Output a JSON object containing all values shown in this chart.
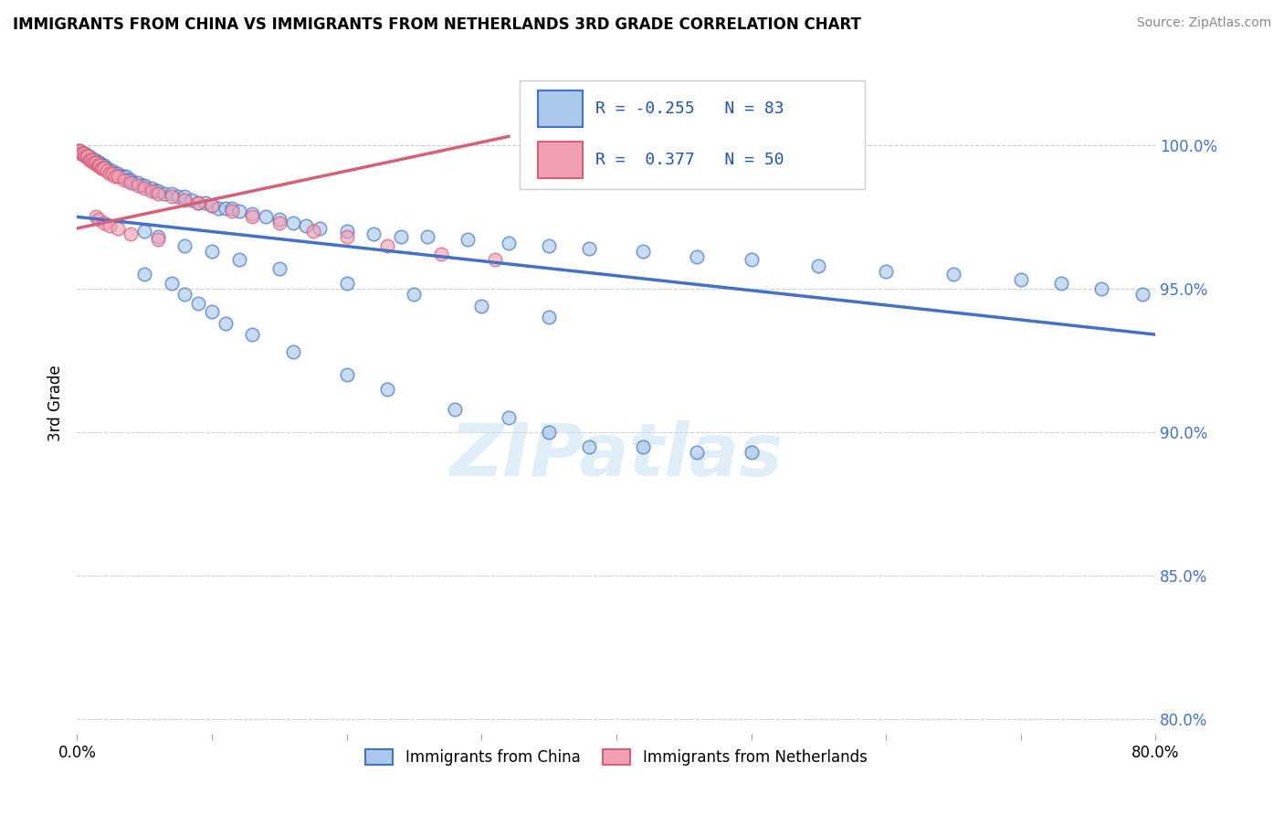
{
  "title": "IMMIGRANTS FROM CHINA VS IMMIGRANTS FROM NETHERLANDS 3RD GRADE CORRELATION CHART",
  "source": "Source: ZipAtlas.com",
  "ylabel": "3rd Grade",
  "x_min": 0.0,
  "x_max": 0.8,
  "y_min": 0.795,
  "y_max": 1.025,
  "y_ticks": [
    0.8,
    0.85,
    0.9,
    0.95,
    1.0
  ],
  "y_tick_labels": [
    "80.0%",
    "85.0%",
    "90.0%",
    "95.0%",
    "100.0%"
  ],
  "legend_labels_bottom": [
    "Immigrants from China",
    "Immigrants from Netherlands"
  ],
  "legend_R_china": "R = -0.255",
  "legend_N_china": "N = 83",
  "legend_R_neth": "R =  0.377",
  "legend_N_neth": "N = 50",
  "color_china": "#aac8ea",
  "color_neth": "#f2a0b4",
  "color_china_line": "#4472c4",
  "color_neth_line": "#d4607a",
  "watermark": "ZIPatlas",
  "china_trend_x0": 0.0,
  "china_trend_y0": 0.975,
  "china_trend_x1": 0.8,
  "china_trend_y1": 0.934,
  "neth_trend_x0": 0.0,
  "neth_trend_y0": 0.971,
  "neth_trend_x1": 0.32,
  "neth_trend_y1": 1.003,
  "china_x": [
    0.001,
    0.002,
    0.003,
    0.004,
    0.005,
    0.006,
    0.007,
    0.008,
    0.009,
    0.01,
    0.011,
    0.012,
    0.013,
    0.014,
    0.015,
    0.016,
    0.017,
    0.018,
    0.019,
    0.02,
    0.022,
    0.024,
    0.026,
    0.028,
    0.03,
    0.032,
    0.034,
    0.036,
    0.038,
    0.04,
    0.042,
    0.045,
    0.048,
    0.05,
    0.055,
    0.058,
    0.06,
    0.065,
    0.07,
    0.075,
    0.08,
    0.085,
    0.09,
    0.095,
    0.1,
    0.105,
    0.11,
    0.115,
    0.12,
    0.13,
    0.14,
    0.15,
    0.16,
    0.17,
    0.18,
    0.2,
    0.22,
    0.24,
    0.26,
    0.29,
    0.32,
    0.35,
    0.38,
    0.42,
    0.46,
    0.5,
    0.55,
    0.6,
    0.65,
    0.7,
    0.73,
    0.76,
    0.79,
    0.05,
    0.06,
    0.08,
    0.1,
    0.12,
    0.15,
    0.2,
    0.25,
    0.3,
    0.35
  ],
  "china_y": [
    0.998,
    0.998,
    0.997,
    0.997,
    0.997,
    0.997,
    0.996,
    0.996,
    0.996,
    0.995,
    0.995,
    0.995,
    0.995,
    0.994,
    0.994,
    0.994,
    0.994,
    0.993,
    0.993,
    0.993,
    0.992,
    0.991,
    0.991,
    0.99,
    0.99,
    0.989,
    0.989,
    0.989,
    0.988,
    0.988,
    0.987,
    0.987,
    0.986,
    0.986,
    0.985,
    0.984,
    0.984,
    0.983,
    0.983,
    0.982,
    0.982,
    0.981,
    0.98,
    0.98,
    0.979,
    0.978,
    0.978,
    0.978,
    0.977,
    0.976,
    0.975,
    0.974,
    0.973,
    0.972,
    0.971,
    0.97,
    0.969,
    0.968,
    0.968,
    0.967,
    0.966,
    0.965,
    0.964,
    0.963,
    0.961,
    0.96,
    0.958,
    0.956,
    0.955,
    0.953,
    0.952,
    0.95,
    0.948,
    0.97,
    0.968,
    0.965,
    0.963,
    0.96,
    0.957,
    0.952,
    0.948,
    0.944,
    0.94
  ],
  "china_x_low": [
    0.05,
    0.07,
    0.08,
    0.09,
    0.1,
    0.11,
    0.13,
    0.16,
    0.2,
    0.23,
    0.28,
    0.32,
    0.35,
    0.38,
    0.42,
    0.46,
    0.5
  ],
  "china_y_low": [
    0.955,
    0.952,
    0.948,
    0.945,
    0.942,
    0.938,
    0.934,
    0.928,
    0.92,
    0.915,
    0.908,
    0.905,
    0.9,
    0.895,
    0.895,
    0.893,
    0.893
  ],
  "neth_x": [
    0.001,
    0.002,
    0.003,
    0.004,
    0.005,
    0.006,
    0.007,
    0.008,
    0.009,
    0.01,
    0.011,
    0.012,
    0.013,
    0.014,
    0.015,
    0.016,
    0.017,
    0.018,
    0.019,
    0.02,
    0.022,
    0.024,
    0.026,
    0.028,
    0.03,
    0.035,
    0.04,
    0.045,
    0.05,
    0.055,
    0.06,
    0.07,
    0.08,
    0.09,
    0.1,
    0.115,
    0.13,
    0.15,
    0.175,
    0.2,
    0.23,
    0.27,
    0.31,
    0.014,
    0.016,
    0.02,
    0.024,
    0.03,
    0.04,
    0.06
  ],
  "neth_y": [
    0.998,
    0.998,
    0.997,
    0.997,
    0.997,
    0.996,
    0.996,
    0.996,
    0.995,
    0.995,
    0.995,
    0.994,
    0.994,
    0.994,
    0.993,
    0.993,
    0.993,
    0.992,
    0.992,
    0.992,
    0.991,
    0.99,
    0.99,
    0.989,
    0.989,
    0.988,
    0.987,
    0.986,
    0.985,
    0.984,
    0.983,
    0.982,
    0.981,
    0.98,
    0.979,
    0.977,
    0.975,
    0.973,
    0.97,
    0.968,
    0.965,
    0.962,
    0.96,
    0.975,
    0.974,
    0.973,
    0.972,
    0.971,
    0.969,
    0.967
  ]
}
